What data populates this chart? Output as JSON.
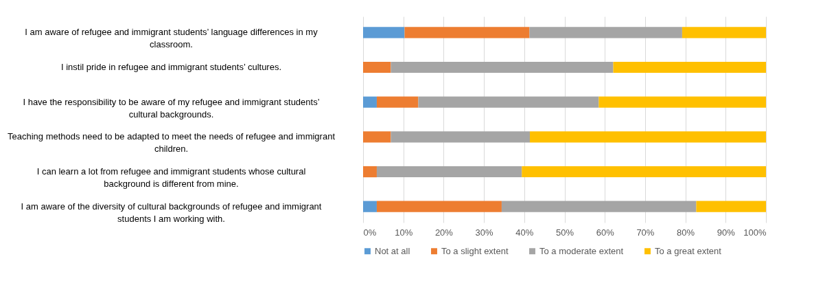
{
  "chart_data": {
    "type": "bar",
    "orientation": "horizontal",
    "stacked": true,
    "categories": [
      "I am aware of refugee and immigrant students’ language differences in my classroom.",
      "I instil pride in refugee and immigrant students’ cultures.",
      "I have the responsibility to be aware of my refugee and immigrant students’ cultural backgrounds.",
      "Teaching methods need to be adapted to meet the needs of refugee and immigrant children.",
      "I can learn a lot from refugee and immigrant students whose cultural background is different from mine.",
      "I am aware of the diversity of cultural backgrounds of refugee and immigrant students I am working with."
    ],
    "series": [
      {
        "name": "Not at all",
        "color": "#5b9bd5",
        "values": [
          10.3,
          0,
          3.4,
          0,
          0,
          3.4
        ]
      },
      {
        "name": "To a slight extent",
        "color": "#ed7d31",
        "values": [
          31.0,
          6.9,
          10.3,
          6.9,
          3.4,
          31.0
        ]
      },
      {
        "name": "To a moderate extent",
        "color": "#a5a5a5",
        "values": [
          37.9,
          55.2,
          44.8,
          34.5,
          36.0,
          48.3
        ]
      },
      {
        "name": "To a great extent",
        "color": "#ffc000",
        "values": [
          20.8,
          37.9,
          41.5,
          58.6,
          60.6,
          17.3
        ]
      }
    ],
    "xlim": [
      0,
      100
    ],
    "xticks": [
      {
        "value": 0,
        "label": "0%"
      },
      {
        "value": 10,
        "label": "10%"
      },
      {
        "value": 20,
        "label": "20%"
      },
      {
        "value": 30,
        "label": "30%"
      },
      {
        "value": 40,
        "label": "40%"
      },
      {
        "value": 50,
        "label": "50%"
      },
      {
        "value": 60,
        "label": "60%"
      },
      {
        "value": 70,
        "label": "70%"
      },
      {
        "value": 80,
        "label": "80%"
      },
      {
        "value": 90,
        "label": "90%"
      },
      {
        "value": 100,
        "label": "100%"
      }
    ],
    "grid": "x",
    "legend": "bottom"
  }
}
